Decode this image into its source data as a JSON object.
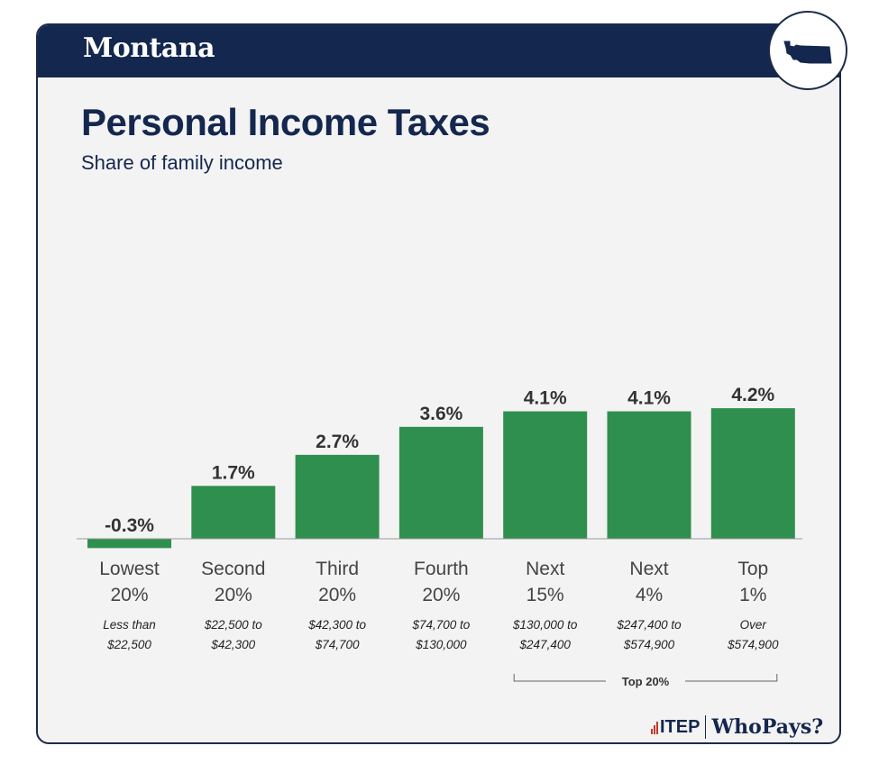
{
  "header": {
    "state": "Montana"
  },
  "title": "Personal Income Taxes",
  "subtitle": "Share of family income",
  "logo": {
    "itep": "ITEP",
    "whopays": "WhoPays?"
  },
  "colors": {
    "bar": "#2f8f4e",
    "navy": "#14274e",
    "card": "#f3f3f3"
  },
  "chart_data": {
    "type": "bar",
    "categories": [
      "Lowest 20%",
      "Second 20%",
      "Third 20%",
      "Fourth 20%",
      "Next 15%",
      "Next 4%",
      "Top 1%"
    ],
    "category_lines": [
      [
        "Lowest",
        "20%"
      ],
      [
        "Second",
        "20%"
      ],
      [
        "Third",
        "20%"
      ],
      [
        "Fourth",
        "20%"
      ],
      [
        "Next",
        "15%"
      ],
      [
        "Next",
        "4%"
      ],
      [
        "Top",
        "1%"
      ]
    ],
    "income_ranges": [
      [
        "Less than",
        "$22,500"
      ],
      [
        "$22,500 to",
        "$42,300"
      ],
      [
        "$42,300 to",
        "$74,700"
      ],
      [
        "$74,700 to",
        "$130,000"
      ],
      [
        "$130,000 to",
        "$247,400"
      ],
      [
        "$247,400 to",
        "$574,900"
      ],
      [
        "Over",
        "$574,900"
      ]
    ],
    "values": [
      -0.3,
      1.7,
      2.7,
      3.6,
      4.1,
      4.1,
      4.2
    ],
    "data_labels": [
      "-0.3%",
      "1.7%",
      "2.7%",
      "3.6%",
      "4.1%",
      "4.1%",
      "4.2%"
    ],
    "group_label": "Top 20%",
    "group_range": [
      4,
      6
    ],
    "ylim": [
      -0.3,
      4.2
    ],
    "grid": false
  }
}
